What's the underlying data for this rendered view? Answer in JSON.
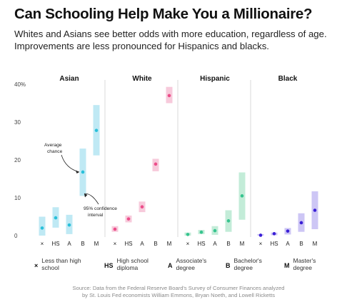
{
  "title": "Can Schooling Help Make You a Millionaire?",
  "subtitle": "Whites and Asians see better odds with more education, regardless of age. Improvements are less pronounced for Hispanics and blacks.",
  "chart_data": {
    "type": "scatter",
    "subtype": "point-with-confidence-interval",
    "y_unit": "%",
    "ylim": [
      0,
      40
    ],
    "yticks": [
      0,
      10,
      20,
      30,
      40
    ],
    "ytick_labels": [
      "0",
      "10",
      "20",
      "30",
      "40%"
    ],
    "grid": false,
    "categories": [
      "×",
      "HS",
      "A",
      "B",
      "M"
    ],
    "panels": [
      {
        "name": "Asian",
        "color": "#29c0da",
        "band_color": "#bfe9f4",
        "values": [
          2.0,
          4.7,
          2.8,
          16.8,
          27.8
        ],
        "ci_low": [
          0,
          2.1,
          0.4,
          10.5,
          21.2
        ],
        "ci_high": [
          5.0,
          7.5,
          5.5,
          23.0,
          34.5
        ]
      },
      {
        "name": "White",
        "color": "#ec4d8a",
        "band_color": "#f7cadb",
        "values": [
          1.7,
          4.4,
          7.6,
          18.9,
          37.0
        ],
        "ci_low": [
          1.0,
          3.5,
          6.2,
          17.0,
          35.0
        ],
        "ci_high": [
          2.5,
          5.3,
          9.0,
          20.3,
          39.3
        ]
      },
      {
        "name": "Hispanic",
        "color": "#37c48f",
        "band_color": "#c3ecd8",
        "values": [
          0.3,
          0.9,
          1.3,
          3.9,
          10.5
        ],
        "ci_low": [
          0,
          0.4,
          0.2,
          1.0,
          4.2
        ],
        "ci_high": [
          0.8,
          1.5,
          2.5,
          6.7,
          16.7
        ]
      },
      {
        "name": "Black",
        "color": "#3a1fd6",
        "band_color": "#cdc6f5",
        "values": [
          0.1,
          0.5,
          1.2,
          3.4,
          6.7
        ],
        "ci_low": [
          0,
          0.1,
          0.3,
          1.0,
          1.7
        ],
        "ci_high": [
          0.4,
          0.8,
          2.0,
          5.9,
          11.7
        ]
      }
    ],
    "annotations": {
      "average": "Average chance",
      "ci": "95% confidence interval"
    }
  },
  "legend": [
    {
      "symbol": "×",
      "label": "Less than high school"
    },
    {
      "symbol": "HS",
      "label": "High school diploma"
    },
    {
      "symbol": "A",
      "label": "Associate's degree"
    },
    {
      "symbol": "B",
      "label": "Bachelor's degree"
    },
    {
      "symbol": "M",
      "label": "Master's degree"
    }
  ],
  "source": {
    "line1": "Source: Data from the Federal Reserve Board's Survey of Consumer Finances analyzed",
    "line2": "by St. Louis Fed economists William Emmons, Bryan Noeth, and Lowell Ricketts"
  }
}
